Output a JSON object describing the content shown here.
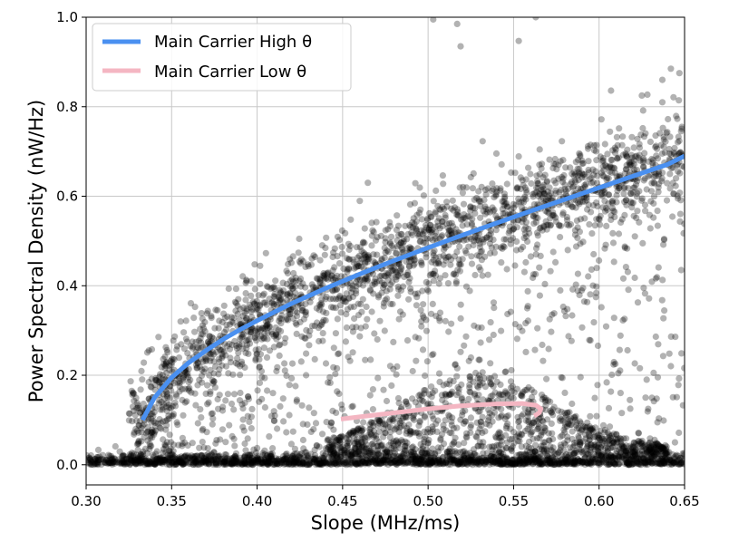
{
  "chart_data": {
    "type": "scatter",
    "title": "",
    "xlabel": "Slope (MHz/ms)",
    "ylabel": "Power Spectral Density (nW/Hz)",
    "xlim": [
      0.3,
      0.65
    ],
    "ylim": [
      -0.045,
      1.0
    ],
    "xticks": [
      0.3,
      0.35,
      0.4,
      0.45,
      0.5,
      0.55,
      0.6,
      0.65
    ],
    "xtick_labels": [
      "0.30",
      "0.35",
      "0.40",
      "0.45",
      "0.50",
      "0.55",
      "0.60",
      "0.65"
    ],
    "yticks": [
      0.0,
      0.2,
      0.4,
      0.6,
      0.8,
      1.0
    ],
    "ytick_labels": [
      "0.0",
      "0.2",
      "0.4",
      "0.6",
      "0.8",
      "1.0"
    ],
    "grid": true,
    "legend": "top-left",
    "series": [
      {
        "name": "Main Carrier High θ",
        "kind": "line",
        "color": "#4a90f0",
        "x": [
          0.333,
          0.34,
          0.35,
          0.36,
          0.37,
          0.38,
          0.39,
          0.4,
          0.42,
          0.44,
          0.46,
          0.48,
          0.5,
          0.52,
          0.54,
          0.56,
          0.58,
          0.6,
          0.62,
          0.64,
          0.65
        ],
        "y": [
          0.1,
          0.15,
          0.195,
          0.228,
          0.255,
          0.28,
          0.302,
          0.322,
          0.36,
          0.394,
          0.426,
          0.456,
          0.485,
          0.513,
          0.54,
          0.567,
          0.593,
          0.619,
          0.645,
          0.671,
          0.69
        ]
      },
      {
        "name": "Main Carrier Low θ",
        "kind": "line",
        "color": "#f4b6c2",
        "x": [
          0.449,
          0.46,
          0.48,
          0.5,
          0.52,
          0.54,
          0.555,
          0.563,
          0.566,
          0.565,
          0.562
        ],
        "y": [
          0.102,
          0.107,
          0.116,
          0.125,
          0.132,
          0.136,
          0.137,
          0.133,
          0.125,
          0.116,
          0.109
        ]
      }
    ],
    "scatter": {
      "color": "#000000",
      "opacity": 0.3,
      "count": 5200,
      "description": "dense cloud of black semi-transparent points around both curves, a dense band near y=0 across all slopes, and sparse outliers up to y≈1.0",
      "outliers": [
        {
          "x": 0.503,
          "y": 0.995
        },
        {
          "x": 0.517,
          "y": 0.985
        },
        {
          "x": 0.519,
          "y": 0.935
        },
        {
          "x": 0.553,
          "y": 0.947
        },
        {
          "x": 0.563,
          "y": 1.0
        },
        {
          "x": 0.642,
          "y": 0.885
        },
        {
          "x": 0.647,
          "y": 0.875
        },
        {
          "x": 0.637,
          "y": 0.86
        },
        {
          "x": 0.607,
          "y": 0.836
        },
        {
          "x": 0.625,
          "y": 0.825
        },
        {
          "x": 0.637,
          "y": 0.81
        }
      ]
    }
  }
}
